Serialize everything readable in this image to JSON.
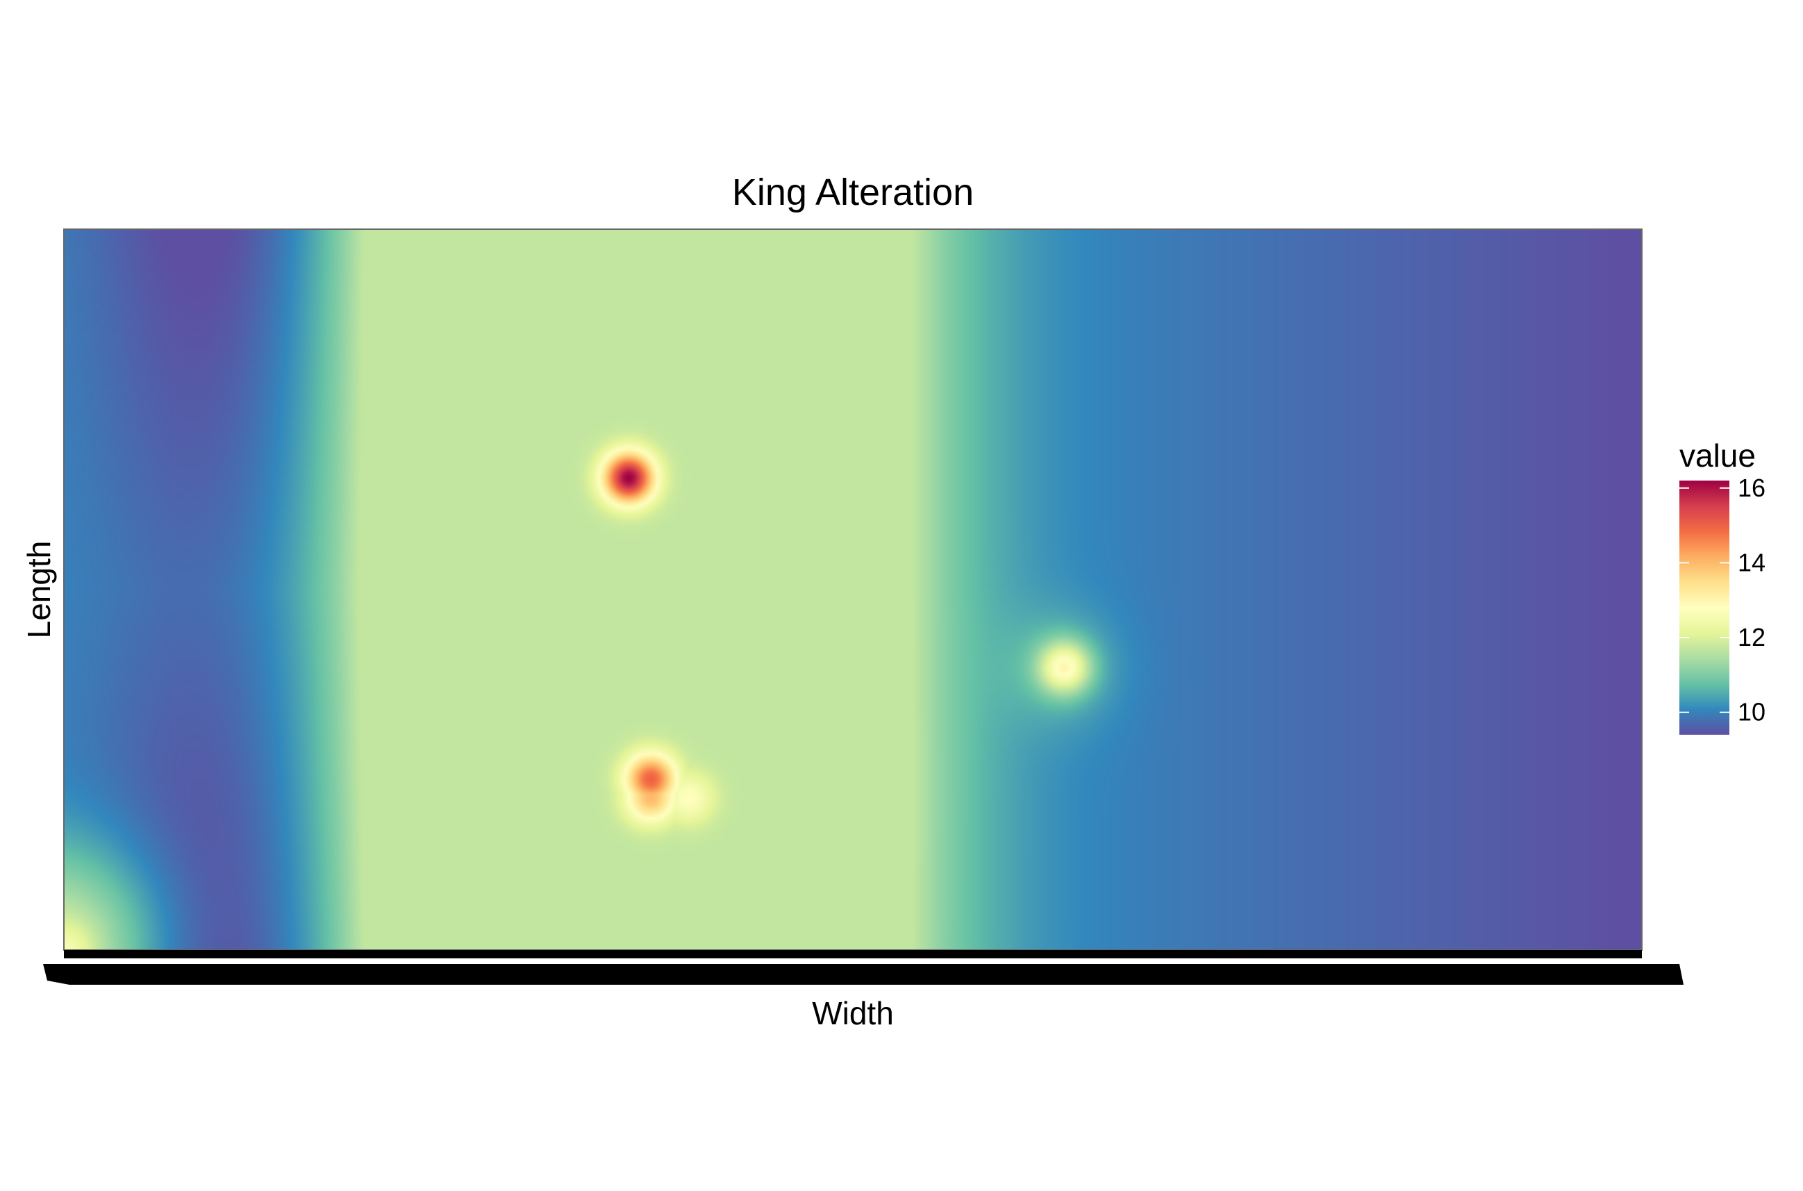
{
  "chart_data": {
    "type": "heatmap",
    "title": "King Alteration",
    "xlabel": "Width",
    "ylabel": "Length",
    "x_tick_labels_legible": false,
    "y_tick_labels": [],
    "grid": false,
    "legend": {
      "title": "value",
      "placement": "right",
      "range": [
        9.4,
        16.2
      ],
      "ticks": [
        10,
        12,
        14,
        16
      ],
      "palette": [
        "#5E4FA2",
        "#3288BD",
        "#66C2A5",
        "#ABDDA4",
        "#E6F598",
        "#FFFFBF",
        "#FEE08B",
        "#FDAE61",
        "#F46D43",
        "#D53E4F",
        "#9E0142"
      ],
      "palette_name": "Spectral"
    },
    "x_range": [
      0,
      1
    ],
    "y_range": [
      0,
      1
    ],
    "hotspots": [
      {
        "x": 0.358,
        "y": 0.655,
        "value": 16.2
      },
      {
        "x": 0.372,
        "y": 0.237,
        "value": 15.0
      },
      {
        "x": 0.372,
        "y": 0.212,
        "value": 14.0
      },
      {
        "x": 0.396,
        "y": 0.211,
        "value": 12.8
      },
      {
        "x": 0.634,
        "y": 0.392,
        "value": 13.0
      },
      {
        "x": 0.0,
        "y": 0.0,
        "value": 12.6
      }
    ],
    "background_gradient_note": "values decrease from ~11.5 near x 0.35 to ~9.4 at right edge"
  }
}
